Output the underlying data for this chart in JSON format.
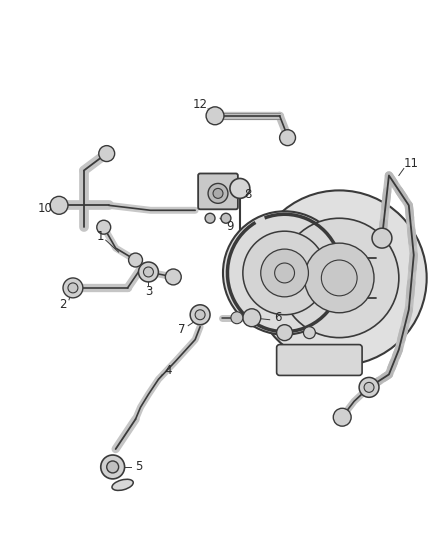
{
  "background_color": "#ffffff",
  "line_color": "#3a3a3a",
  "label_color": "#2a2a2a",
  "fig_width": 4.38,
  "fig_height": 5.33,
  "dpi": 100,
  "label_fontsize": 8.5
}
